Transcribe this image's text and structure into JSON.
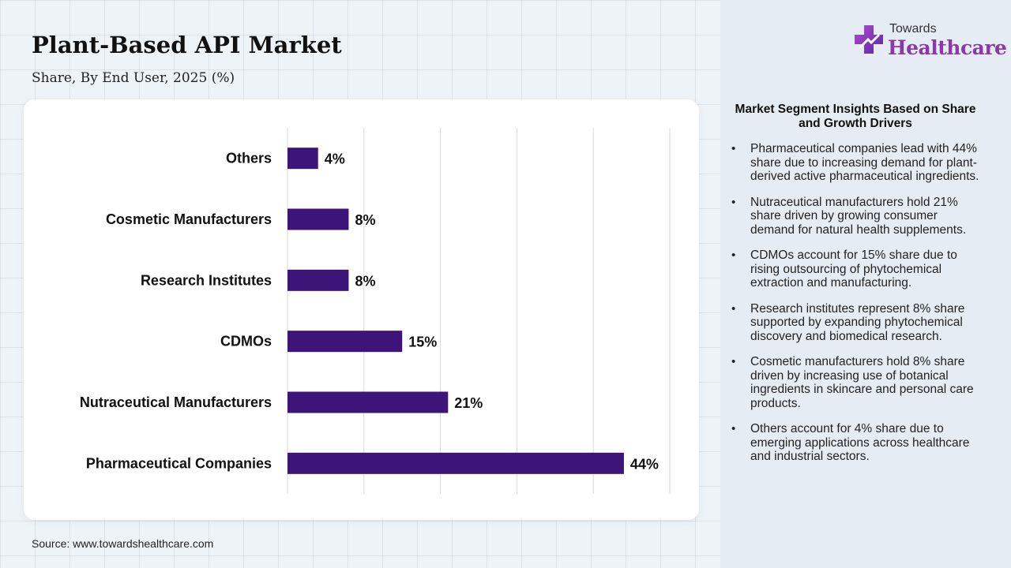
{
  "header": {
    "title": "Plant-Based API Market",
    "subtitle": "Share, By End User, 2025 (%)"
  },
  "logo": {
    "line1": "Towards",
    "line2": "Healthcare",
    "icon": "cross-icon",
    "color": "#8a3aa8"
  },
  "source": "Source: www.towardshealthcare.com",
  "colors": {
    "bar": "#3d1578",
    "grid": "#d8d8d8"
  },
  "chart_data": {
    "type": "bar",
    "orientation": "horizontal",
    "categories": [
      "Others",
      "Cosmetic Manufacturers",
      "Research Institutes",
      "CDMOs",
      "Nutraceutical Manufacturers",
      "Pharmaceutical Companies"
    ],
    "values": [
      4,
      8,
      8,
      15,
      21,
      44
    ],
    "value_labels": [
      "4%",
      "8%",
      "8%",
      "15%",
      "21%",
      "44%"
    ],
    "xlim": [
      0,
      50
    ],
    "grid": true,
    "legend": "none"
  },
  "insights": {
    "title": "Market Segment Insights Based on Share and Growth Drivers",
    "items": [
      "Pharmaceutical companies lead with 44% share due to increasing demand for plant-derived active pharmaceutical ingredients.",
      "Nutraceutical manufacturers hold 21% share driven by growing consumer demand for natural health supplements.",
      "CDMOs account for 15% share due to rising outsourcing of phytochemical extraction and manufacturing.",
      "Research institutes represent 8% share supported by expanding phytochemical discovery and biomedical research.",
      "Cosmetic manufacturers hold 8% share driven by increasing use of botanical ingredients in skincare and personal care products.",
      "Others account for 4% share due to emerging applications across healthcare and industrial sectors."
    ]
  }
}
